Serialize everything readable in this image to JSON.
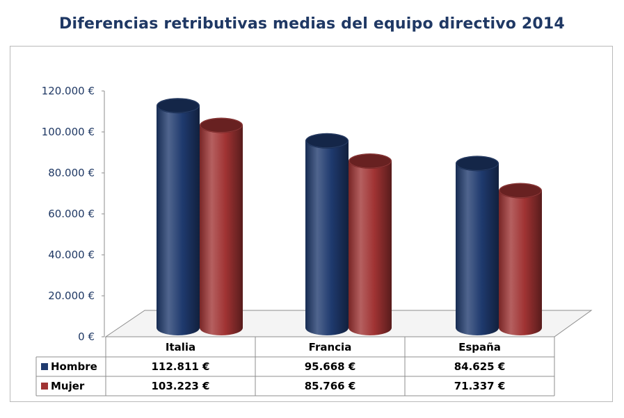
{
  "chart_data": {
    "type": "bar",
    "title": "Diferencias retributivas medias del equipo directivo 2014",
    "categories": [
      "Italia",
      "Francia",
      "España"
    ],
    "series": [
      {
        "name": "Hombre",
        "color": "#1f3a6e",
        "values": [
          112811,
          95668,
          84625
        ],
        "labels": [
          "112.811 €",
          "95.668 €",
          "84.625 €"
        ]
      },
      {
        "name": "Mujer",
        "color": "#a03333",
        "values": [
          103223,
          85766,
          71337
        ],
        "labels": [
          "103.223 €",
          "85.766 €",
          "71.337 €"
        ]
      }
    ],
    "ylim": [
      0,
      120000
    ],
    "yticks": [
      0,
      20000,
      40000,
      60000,
      80000,
      100000,
      120000
    ],
    "ytick_labels": [
      "0 €",
      "20.000 €",
      "40.000 €",
      "60.000 €",
      "80.000 €",
      "100.000 €",
      "120.000 €"
    ],
    "grid": false,
    "legend": "data-table"
  }
}
